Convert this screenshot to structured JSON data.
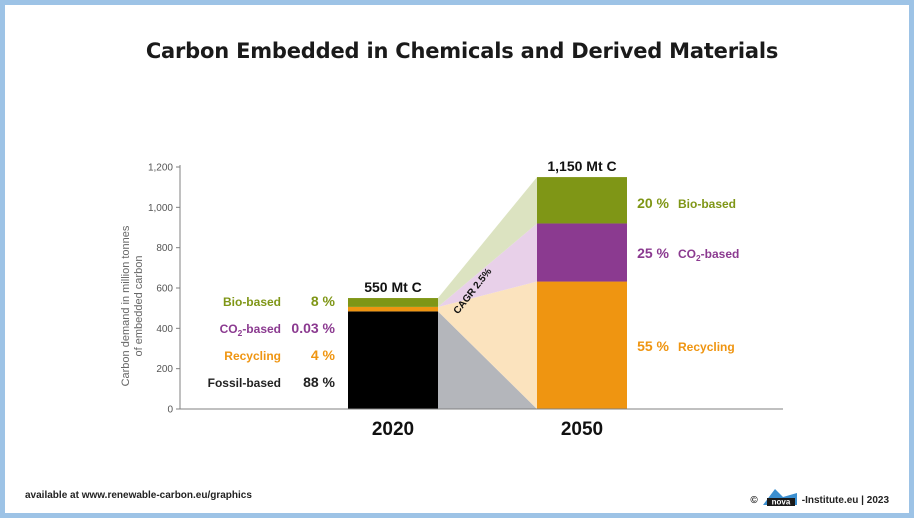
{
  "title": "Carbon Embedded in Chemicals and Derived Materials",
  "footer": {
    "source": "available at www.renewable-carbon.eu/graphics",
    "copyright_symbol": "©",
    "logo_text": "nova",
    "credit": "-Institute.eu | 2023"
  },
  "colors": {
    "bio": "#7f9616",
    "co2": "#8b3a90",
    "recycling": "#ef9511",
    "fossil": "#000000",
    "bio_fan": "#dce3c1",
    "co2_fan": "#e8d0e9",
    "recycling_fan": "#fbe3be",
    "fossil_fan": "#b4b6bb",
    "axis": "#808080"
  },
  "chart_data": {
    "type": "bar",
    "stacked": true,
    "ylabel": "Carbon demand in million tonnes of embedded carbon",
    "ylabel_lines": [
      "Carbon demand in million tonnes",
      "of embedded carbon"
    ],
    "ylim": [
      0,
      1200
    ],
    "yticks": [
      "0",
      "200",
      "400",
      "600",
      "800",
      "1,000",
      "1,200"
    ],
    "yticks_values": [
      0,
      200,
      400,
      600,
      800,
      1000,
      1200
    ],
    "categories": [
      "2020",
      "2050"
    ],
    "totals": [
      550,
      1150
    ],
    "total_labels": [
      "550 Mt C",
      "1,150 Mt C"
    ],
    "growth_annotation": "CAGR 2.5%",
    "series": [
      {
        "name": "Fossil-based",
        "values": [
          484,
          0
        ],
        "share_labels": [
          "88 %",
          ""
        ]
      },
      {
        "name": "Recycling",
        "values": [
          22,
          632
        ],
        "share_labels": [
          "4 %",
          "55 %"
        ]
      },
      {
        "name": "CO2-based",
        "values": [
          0.2,
          288
        ],
        "share_labels": [
          "0.03 %",
          "25 %"
        ]
      },
      {
        "name": "Bio-based",
        "values": [
          44,
          230
        ],
        "share_labels": [
          "8 %",
          "20 %"
        ]
      }
    ],
    "label_2020": [
      {
        "name": "Bio-based",
        "pct": "8 %"
      },
      {
        "name": "CO2-based",
        "pct": "0.03 %"
      },
      {
        "name": "Recycling",
        "pct": "4 %"
      },
      {
        "name": "Fossil-based",
        "pct": "88 %"
      }
    ],
    "label_2050": [
      {
        "name": "Bio-based",
        "pct": "20 %"
      },
      {
        "name": "CO2-based",
        "pct": "25 %"
      },
      {
        "name": "Recycling",
        "pct": "55 %"
      }
    ],
    "grid": false,
    "legend": "none"
  }
}
